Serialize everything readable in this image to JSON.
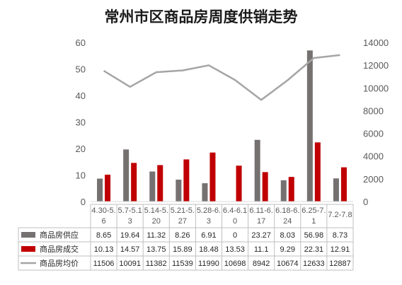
{
  "chart_data": {
    "type": "bar",
    "title": "常州市区商品房周度供销走势",
    "categories": [
      [
        "4.30-5.",
        "6"
      ],
      [
        "5.7-5.1",
        "3"
      ],
      [
        "5.14-5.",
        "20"
      ],
      [
        "5.21-5.",
        "27"
      ],
      [
        "5.28-6.",
        "3"
      ],
      [
        "6.4-6.1",
        "0"
      ],
      [
        "6.11-6.",
        "17"
      ],
      [
        "6.18-6.",
        "24"
      ],
      [
        "6.25-7.",
        "1"
      ],
      [
        "7.2-7.8",
        ""
      ]
    ],
    "y_left": {
      "min": 0,
      "max": 60,
      "ticks": [
        "0",
        "10",
        "20",
        "30",
        "40",
        "50",
        "60"
      ]
    },
    "y_right": {
      "min": 0,
      "max": 14000,
      "ticks": [
        "0",
        "2000",
        "4000",
        "6000",
        "8000",
        "10000",
        "12000",
        "14000"
      ]
    },
    "series": [
      {
        "name": "商品房供应",
        "type": "bar",
        "axis": "left",
        "color": "#767171",
        "values": [
          8.65,
          19.64,
          11.32,
          8.26,
          6.91,
          0,
          23.27,
          8.03,
          56.98,
          8.73
        ]
      },
      {
        "name": "商品房成交",
        "type": "bar",
        "axis": "left",
        "color": "#c00000",
        "values": [
          10.13,
          14.57,
          13.75,
          15.89,
          18.48,
          13.53,
          11.1,
          9.29,
          22.31,
          12.91
        ]
      },
      {
        "name": "商品房均价",
        "type": "line",
        "axis": "right",
        "color": "#a5a5a5",
        "values": [
          11506,
          10091,
          11382,
          11539,
          11990,
          10698,
          8942,
          10674,
          12633,
          12887
        ]
      }
    ],
    "grid": false,
    "legend": "data-table-below"
  }
}
